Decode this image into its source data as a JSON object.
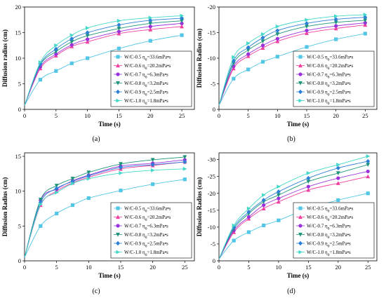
{
  "figure": {
    "panel_labels": [
      "(a)",
      "(b)",
      "(c)",
      "(d)"
    ]
  },
  "colors": {
    "W/C-0.5": "#53c6e6",
    "W/C-0.6": "#f03f9e",
    "W/C-0.7": "#9a32dc",
    "W/C-0.8": "#1d9479",
    "W/C-0.9": "#2d7fd6",
    "W/C-1.0": "#43d8c8"
  },
  "markers": {
    "W/C-0.5": "square",
    "W/C-0.6": "triangle-up",
    "W/C-0.7": "circle",
    "W/C-0.8": "triangle-down",
    "W/C-0.9": "diamond",
    "W/C-1.0": "triangle-right"
  },
  "chart_data": [
    {
      "type": "scatter",
      "panel": "(a)",
      "xlabel": "Time (s)",
      "ylabel": "Diffusion radius (cm)",
      "xlim": [
        0,
        27
      ],
      "ylim": [
        0,
        20
      ],
      "xticks": [
        "0",
        "5",
        "10",
        "15",
        "20",
        "25"
      ],
      "yticks": [
        "0",
        "5",
        "10",
        "15",
        "20"
      ],
      "legend_position": "bottom-right",
      "x": [
        0,
        2.5,
        5,
        7.5,
        10,
        15,
        20,
        25
      ],
      "series": [
        {
          "name": "W/C-0.5 η0=33.6mPa•s",
          "key": "W/C-0.5",
          "values": [
            0.8,
            5.8,
            7.5,
            9.0,
            10.0,
            11.9,
            13.4,
            14.5
          ]
        },
        {
          "name": "W/C-0.6 η0=20.2mPa•s",
          "key": "W/C-0.6",
          "values": [
            0.8,
            8.0,
            10.5,
            12.3,
            13.2,
            14.8,
            15.6,
            16.2
          ]
        },
        {
          "name": "W/C-0.7 η0=6.3mPa•s",
          "key": "W/C-0.7",
          "values": [
            0.8,
            8.3,
            10.8,
            12.6,
            13.7,
            15.2,
            16.2,
            16.8
          ]
        },
        {
          "name": "W/C-0.8 η0=3.2mPa•s",
          "key": "W/C-0.8",
          "values": [
            0.8,
            8.7,
            11.3,
            13.2,
            14.4,
            15.8,
            16.8,
            17.3
          ]
        },
        {
          "name": "W/C-0.9 η0=2.5mPa•s",
          "key": "W/C-0.9",
          "values": [
            0.8,
            8.9,
            11.8,
            13.8,
            15.0,
            16.5,
            17.4,
            17.8
          ]
        },
        {
          "name": "W/C-1.0 η0=1.8mPa•s",
          "key": "W/C-1.0",
          "values": [
            0.8,
            9.2,
            12.5,
            14.5,
            15.9,
            17.3,
            17.9,
            18.3
          ]
        }
      ]
    },
    {
      "type": "scatter",
      "panel": "(b)",
      "xlabel": "Time (s)",
      "ylabel": "Diffusion Radius (cm)",
      "xlim": [
        0,
        27
      ],
      "ylim": [
        0,
        -20
      ],
      "xticks": [
        "0",
        "5",
        "10",
        "15",
        "20",
        "25"
      ],
      "yticks": [
        "0",
        "-5",
        "-10",
        "-15",
        "-20"
      ],
      "legend_position": "bottom-right",
      "x": [
        0,
        2.5,
        5,
        7.5,
        10,
        15,
        20,
        25
      ],
      "series": [
        {
          "name": "W/C-0.5 η0=33.6mPa•s",
          "key": "W/C-0.5",
          "values": [
            -0.8,
            -6.0,
            -7.8,
            -9.3,
            -10.3,
            -12.2,
            -13.7,
            -14.8
          ]
        },
        {
          "name": "W/C-0.6 η0=20.2mPa•s",
          "key": "W/C-0.6",
          "values": [
            -0.8,
            -8.0,
            -10.4,
            -12.0,
            -13.3,
            -14.9,
            -15.8,
            -16.5
          ]
        },
        {
          "name": "W/C-0.7 η0=6.3mPa•s",
          "key": "W/C-0.7",
          "values": [
            -0.8,
            -8.4,
            -10.8,
            -12.5,
            -13.8,
            -15.4,
            -16.3,
            -16.9
          ]
        },
        {
          "name": "W/C-0.8 η0=3.2mPa•s",
          "key": "W/C-0.8",
          "values": [
            -0.8,
            -9.0,
            -11.6,
            -13.3,
            -14.7,
            -16.2,
            -17.0,
            -17.4
          ]
        },
        {
          "name": "W/C-0.9 η0=2.5mPa•s",
          "key": "W/C-0.9",
          "values": [
            -0.8,
            -9.5,
            -12.1,
            -14.0,
            -15.4,
            -16.8,
            -17.6,
            -18.0
          ]
        },
        {
          "name": "W/C-1.0 η0=1.8mPa•s",
          "key": "W/C-1.0",
          "values": [
            -0.8,
            -10.2,
            -12.9,
            -14.7,
            -16.2,
            -17.5,
            -18.2,
            -18.5
          ]
        }
      ]
    },
    {
      "type": "scatter",
      "panel": "(c)",
      "xlabel": "Time (s)",
      "ylabel": "Diffusion Radius (cm)",
      "xlim": [
        0,
        26.5
      ],
      "ylim": [
        0,
        15.5
      ],
      "xticks": [
        "0",
        "5",
        "10",
        "15",
        "20",
        "25"
      ],
      "yticks": [
        "0",
        "5",
        "10",
        "15"
      ],
      "legend_position": "bottom-right",
      "x": [
        0,
        2.5,
        5,
        7.5,
        10,
        15,
        20,
        25
      ],
      "series": [
        {
          "name": "W/C-0.5 η0=33.6mPa•s",
          "key": "W/C-0.5",
          "values": [
            0.5,
            5.0,
            6.8,
            8.0,
            9.0,
            10.1,
            11.0,
            11.7
          ]
        },
        {
          "name": "W/C-0.6 η0=20.2mPa•s",
          "key": "W/C-0.6",
          "values": [
            0.5,
            8.0,
            10.0,
            11.2,
            12.0,
            13.2,
            13.7,
            14.2
          ]
        },
        {
          "name": "W/C-0.7 η0=6.3mPa•s",
          "key": "W/C-0.7",
          "values": [
            0.5,
            8.7,
            10.3,
            11.5,
            12.3,
            13.6,
            14.0,
            14.5
          ]
        },
        {
          "name": "W/C-0.8 η0=3.2mPa•s",
          "key": "W/C-0.8",
          "values": [
            0.5,
            8.8,
            10.8,
            11.8,
            12.7,
            13.9,
            14.5,
            14.9
          ]
        },
        {
          "name": "W/C-0.9 η0=2.5mPa•s",
          "key": "W/C-0.9",
          "values": [
            0.5,
            8.4,
            10.4,
            11.4,
            12.2,
            13.4,
            13.8,
            14.2
          ]
        },
        {
          "name": "W/C-1.0 η0=1.8mPa•s",
          "key": "W/C-1.0",
          "values": [
            0.5,
            8.1,
            9.8,
            11.1,
            11.8,
            12.6,
            13.0,
            13.2
          ]
        }
      ]
    },
    {
      "type": "scatter",
      "panel": "(d)",
      "xlabel": "Time (s)",
      "ylabel": "Diffusion Radius (cm)",
      "xlim": [
        0,
        26.5
      ],
      "ylim": [
        0,
        -32
      ],
      "xticks": [
        "0",
        "5",
        "10",
        "15",
        "20",
        "25"
      ],
      "yticks": [
        "0",
        "-5",
        "-10",
        "-15",
        "-20",
        "-25",
        "-30"
      ],
      "legend_position": "bottom-right",
      "x": [
        0,
        2.5,
        5,
        7.5,
        10,
        15,
        20,
        25
      ],
      "series": [
        {
          "name": "W/C-0.5 η0=33.6mPa•s",
          "key": "W/C-0.5",
          "values": [
            -0.5,
            -6.0,
            -8.5,
            -10.5,
            -12.0,
            -15.5,
            -18.0,
            -20.0
          ]
        },
        {
          "name": "W/C-0.6 η0=20.2mPa•s",
          "key": "W/C-0.6",
          "values": [
            -0.5,
            -8.5,
            -12.5,
            -15.5,
            -17.5,
            -21.0,
            -23.0,
            -25.0
          ]
        },
        {
          "name": "W/C-0.7 η0=6.3mPa•s",
          "key": "W/C-0.7",
          "values": [
            -0.5,
            -9.0,
            -13.0,
            -16.5,
            -18.5,
            -22.0,
            -24.5,
            -26.5
          ]
        },
        {
          "name": "W/C-0.8 η0=3.2mPa•s",
          "key": "W/C-0.8",
          "values": [
            -0.5,
            -9.5,
            -14.0,
            -17.5,
            -19.5,
            -23.5,
            -26.0,
            -28.5
          ]
        },
        {
          "name": "W/C-0.9 η0=2.5mPa•s",
          "key": "W/C-0.9",
          "values": [
            -0.5,
            -10.0,
            -14.5,
            -18.0,
            -20.5,
            -24.5,
            -27.5,
            -29.5
          ]
        },
        {
          "name": "W/C-1.0 η0=1.8mPa•s",
          "key": "W/C-1.0",
          "values": [
            -0.5,
            -10.5,
            -15.5,
            -19.5,
            -22.0,
            -26.0,
            -28.5,
            -31.0
          ]
        }
      ]
    }
  ]
}
